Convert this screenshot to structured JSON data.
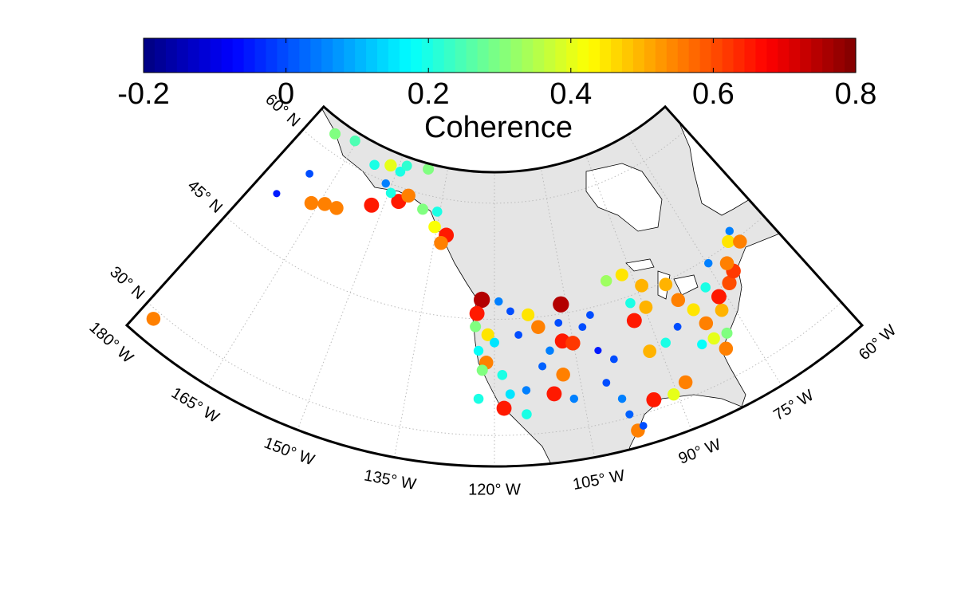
{
  "chart_data": {
    "type": "scatter",
    "projection": "conic",
    "colorbar": {
      "label": "Coherence",
      "clim": [
        -0.2,
        0.8
      ],
      "ticks": [
        -0.2,
        0,
        0.2,
        0.4,
        0.6,
        0.8
      ],
      "colormap": "jet"
    },
    "lonlim": [
      -180,
      -60
    ],
    "latlim": [
      26,
      64
    ],
    "lonticks": [
      {
        "value": -180,
        "label": "180° W"
      },
      {
        "value": -165,
        "label": "165° W"
      },
      {
        "value": -150,
        "label": "150° W"
      },
      {
        "value": -135,
        "label": "135° W"
      },
      {
        "value": -120,
        "label": "120° W"
      },
      {
        "value": -105,
        "label": "105° W"
      },
      {
        "value": -90,
        "label": "90° W"
      },
      {
        "value": -75,
        "label": "75° W"
      },
      {
        "value": -60,
        "label": "60° W"
      }
    ],
    "latticks": [
      {
        "value": 30,
        "label": "30° N"
      },
      {
        "value": 45,
        "label": "45° N"
      },
      {
        "value": 60,
        "label": "60° N"
      }
    ],
    "grid": true,
    "series": [
      {
        "x": [
          -171.9,
          -165.6,
          -171.1,
          -174.6,
          -166.6,
          -163.7,
          -160.7,
          -153.0,
          -146.6,
          -144.5,
          -152.4,
          -149.0,
          -147.7,
          -156.9,
          -141.0,
          -151.7,
          -149.4,
          -139.7,
          -135.7,
          -135.6,
          -132.3,
          -133.3,
          -177.6,
          -122.7,
          -123.6,
          -123.8,
          -121.3,
          -123.0,
          -121.5,
          -122.2,
          -118.6,
          -117.3,
          -118.4,
          -114.5,
          -109.8,
          -107.8,
          -106.1,
          -111.3,
          -113.1,
          -116.7,
          -119.1,
          -115.3,
          -107.0,
          -105.1,
          -109.6,
          -102.7,
          -100.8,
          -100.7,
          -98.8,
          -97.7,
          -98.3,
          -93.9,
          -90.6,
          -88.1,
          -91.9,
          -88.7,
          -92.7,
          -89.7,
          -92.3,
          -95.6,
          -92.0,
          -88.9,
          -84.3,
          -83.4,
          -81.6,
          -80.7,
          -83.0,
          -79.7,
          -80.7,
          -77.1,
          -76.3,
          -73.3,
          -71.4,
          -71.6,
          -77.6,
          -74.7,
          -68.9,
          -67.4,
          -67.0,
          -78.3,
          -85.6,
          -98.4,
          -106.6,
          -100.7,
          -107.2,
          -111.3,
          -120.0,
          -122.7,
          -114.7,
          -96.7
        ],
        "y": [
          62.2,
          62.9,
          56.1,
          51.5,
          53.1,
          53.9,
          54.2,
          56.5,
          58.2,
          59.3,
          62.2,
          61.9,
          62.9,
          61.4,
          63.3,
          59.8,
          58.9,
          58.1,
          58.2,
          56.2,
          55.4,
          54.3,
          28.9,
          47.5,
          45.7,
          44.0,
          43.0,
          40.9,
          39.4,
          38.4,
          37.8,
          35.3,
          33.5,
          35.7,
          34.9,
          37.2,
          46.2,
          43.7,
          45.4,
          46.0,
          47.3,
          42.9,
          41.5,
          41.0,
          40.5,
          42.8,
          39.4,
          35.1,
          32.6,
          28.1,
          30.4,
          31.3,
          31.1,
          32.0,
          37.4,
          37.7,
          41.8,
          42.9,
          44.1,
          47.8,
          47.9,
          45.7,
          44.6,
          42.1,
          40.1,
          37.8,
          35.6,
          33.7,
          35.6,
          38.3,
          40.0,
          40.8,
          41.8,
          43.1,
          41.9,
          44.4,
          45.3,
          46.3,
          44.4,
          35.4,
          39.0,
          37.8,
          33.9,
          44.1,
          43.9,
          38.6,
          42.0,
          34.7,
          32.6,
          28.5
        ],
        "values": [
          0.3,
          0.25,
          0.0,
          -0.05,
          0.55,
          0.55,
          0.55,
          0.65,
          0.65,
          0.55,
          0.4,
          0.2,
          0.22,
          0.2,
          0.3,
          0.05,
          0.2,
          0.3,
          0.2,
          0.42,
          0.65,
          0.55,
          0.55,
          0.75,
          0.65,
          0.3,
          0.45,
          0.18,
          0.55,
          0.3,
          0.2,
          0.15,
          0.65,
          0.05,
          0.65,
          0.55,
          0.75,
          0.55,
          0.45,
          0.0,
          0.05,
          0.0,
          0.65,
          0.62,
          0.05,
          0.0,
          -0.05,
          0.0,
          0.05,
          0.55,
          0.02,
          0.65,
          0.4,
          0.55,
          0.5,
          0.2,
          0.65,
          0.5,
          0.2,
          0.33,
          0.45,
          0.5,
          0.5,
          0.55,
          0.45,
          0.55,
          0.18,
          0.55,
          0.4,
          0.5,
          0.65,
          0.6,
          0.62,
          0.55,
          0.2,
          0.05,
          0.45,
          0.05,
          0.55,
          0.3,
          0.0,
          0.0,
          0.05,
          0.0,
          0.0,
          0.02,
          0.15,
          0.2,
          0.2,
          0.0
        ]
      }
    ]
  }
}
